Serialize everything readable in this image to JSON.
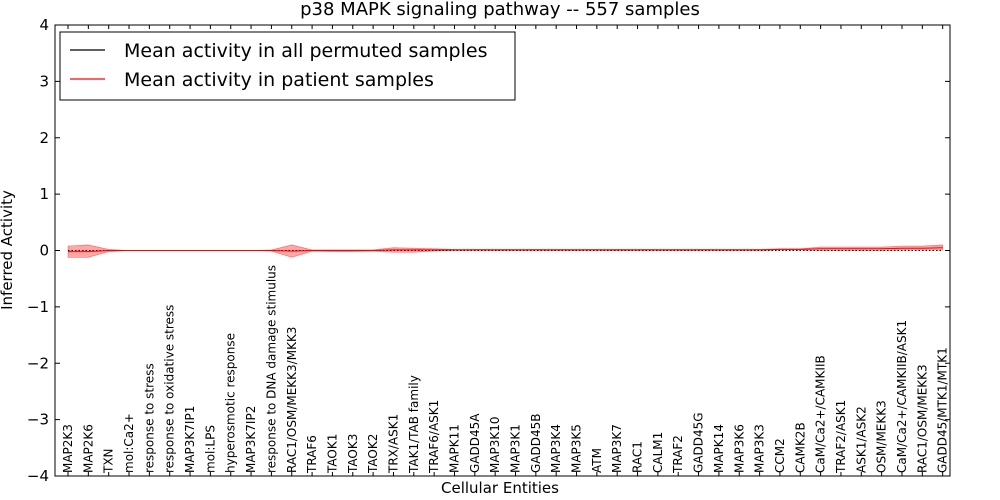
{
  "chart_data": {
    "type": "line",
    "title": "p38 MAPK signaling pathway -- 557 samples",
    "xlabel": "Cellular Entities",
    "ylabel": "Inferred Activity",
    "ylim": [
      -4,
      4
    ],
    "yticks": [
      -4,
      -3,
      -2,
      -1,
      0,
      1,
      2,
      3,
      4
    ],
    "ytick_labels": [
      "−4",
      "−3",
      "−2",
      "−1",
      "0",
      "1",
      "2",
      "3",
      "4"
    ],
    "categories": [
      "MAP2K3",
      "MAP2K6",
      "TXN",
      "mol:Ca2+",
      "response to stress",
      "response to oxidative stress",
      "MAP3K7IP1",
      "mol:LPS",
      "hyperosmotic response",
      "MAP3K7IP2",
      "response to DNA damage stimulus",
      "RAC1/OSM/MEKK3/MKK3",
      "TRAF6",
      "TAOK1",
      "TAOK3",
      "TAOK2",
      "TRX/ASK1",
      "TAK1/TAB family",
      "TRAF6/ASK1",
      "MAPK11",
      "GADD45A",
      "MAP3K10",
      "MAP3K1",
      "GADD45B",
      "MAP3K4",
      "MAP3K5",
      "ATM",
      "MAP3K7",
      "RAC1",
      "CALM1",
      "TRAF2",
      "GADD45G",
      "MAPK14",
      "MAP3K6",
      "MAP3K3",
      "CCM2",
      "CAMK2B",
      "CaM/Ca2+/CAMKIIB",
      "TRAF2/ASK1",
      "ASK1/ASK2",
      "OSM/MEKK3",
      "CaM/Ca2+/CAMKIIB/ASK1",
      "RAC1/OSM/MEKK3",
      "GADD45/MTK1/MTK1"
    ],
    "series": [
      {
        "name": "Mean activity in all permuted samples",
        "color": "#000000",
        "style": "dotted",
        "values": [
          0,
          0,
          0,
          0,
          0,
          0,
          0,
          0,
          0,
          0,
          0,
          0,
          0,
          0,
          0,
          0,
          0,
          0,
          0,
          0,
          0,
          0,
          0,
          0,
          0,
          0,
          0,
          0,
          0,
          0,
          0,
          0,
          0,
          0,
          0,
          0,
          0,
          0,
          0,
          0,
          0,
          0,
          0,
          0
        ]
      },
      {
        "name": "Mean activity in patient samples",
        "color": "#ff0000",
        "style": "solid",
        "values": [
          -0.02,
          -0.02,
          0,
          0,
          0,
          0,
          0,
          0,
          0,
          0,
          0,
          -0.01,
          0,
          0,
          0,
          0,
          0.01,
          0.01,
          0.01,
          0.01,
          0.01,
          0.01,
          0.01,
          0.01,
          0.01,
          0.01,
          0.01,
          0.01,
          0.01,
          0.01,
          0.01,
          0.01,
          0.01,
          0.01,
          0.01,
          0.02,
          0.02,
          0.03,
          0.03,
          0.03,
          0.03,
          0.04,
          0.04,
          0.05
        ],
        "band_upper": [
          0.08,
          0.1,
          0.02,
          0,
          0,
          0,
          0,
          0,
          0,
          0,
          0.01,
          0.1,
          0.01,
          0.01,
          0.01,
          0.01,
          0.05,
          0.04,
          0.03,
          0.02,
          0.02,
          0.02,
          0.02,
          0.02,
          0.02,
          0.02,
          0.02,
          0.02,
          0.02,
          0.02,
          0.02,
          0.02,
          0.02,
          0.02,
          0.02,
          0.03,
          0.03,
          0.06,
          0.06,
          0.06,
          0.06,
          0.08,
          0.08,
          0.1
        ],
        "band_lower": [
          -0.12,
          -0.12,
          -0.02,
          0,
          0,
          0,
          0,
          0,
          0,
          0,
          -0.01,
          -0.12,
          -0.01,
          -0.02,
          -0.02,
          -0.01,
          -0.03,
          -0.03,
          -0.01,
          0,
          0,
          0,
          0,
          0,
          0,
          0,
          0,
          0,
          0,
          0,
          0,
          0,
          0,
          0,
          0,
          0.01,
          0.01,
          0,
          0,
          0,
          0,
          0.01,
          0.01,
          0.01
        ]
      }
    ],
    "legend": {
      "position": "top-left",
      "entries": [
        "Mean activity in all permuted samples",
        "Mean activity in patient samples"
      ]
    }
  }
}
